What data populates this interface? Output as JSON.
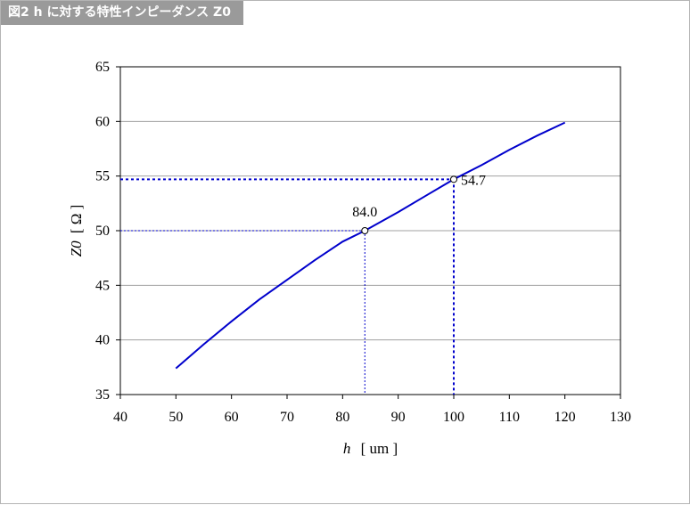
{
  "header": {
    "title": "図2 h に対する特性インピーダンス Z0"
  },
  "chart_data": {
    "type": "line",
    "xlabel": "h",
    "xunit": "[ um ]",
    "ylabel": "Z0",
    "yunit": "[ Ω ]",
    "xlim": [
      40,
      130
    ],
    "ylim": [
      35,
      65
    ],
    "xticks": [
      "40",
      "50",
      "60",
      "70",
      "80",
      "90",
      "100",
      "110",
      "120",
      "130"
    ],
    "yticks": [
      "35",
      "40",
      "45",
      "50",
      "55",
      "60",
      "65"
    ],
    "grid": "horizontal",
    "series": [
      {
        "color": "#0000cc",
        "x": [
          50,
          55,
          60,
          65,
          70,
          75,
          80,
          84,
          90,
          95,
          100,
          105,
          110,
          115,
          120
        ],
        "y": [
          37.4,
          39.6,
          41.7,
          43.7,
          45.5,
          47.3,
          49.0,
          50.0,
          51.7,
          53.2,
          54.7,
          56.0,
          57.4,
          58.7,
          59.9
        ]
      }
    ],
    "annotations": [
      {
        "label": "84.0",
        "x": 84.0,
        "y": 50.0,
        "color": "#0000cc",
        "label_position": "above"
      },
      {
        "label": "54.7",
        "x": 100.0,
        "y": 54.7,
        "color": "#0000cc",
        "label_position": "right"
      }
    ]
  }
}
